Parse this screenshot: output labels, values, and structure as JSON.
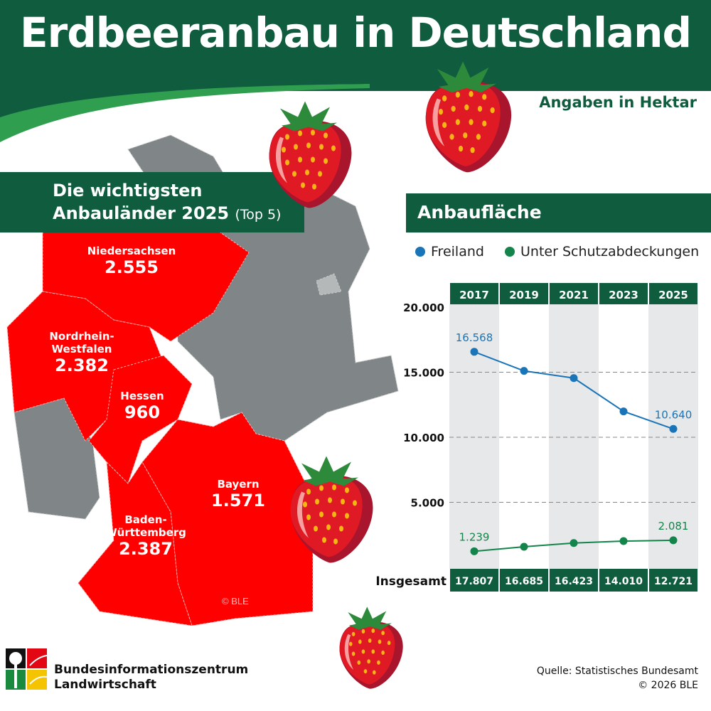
{
  "header": {
    "title": "Erdbeeranbau in Deutschland",
    "unit_note": "Angaben in Hektar"
  },
  "map": {
    "title_line1": "Die wichtigsten",
    "title_line2": "Anbauländer 2025",
    "title_suffix": "(Top 5)",
    "highlight_color": "#ff0000",
    "other_color": "#808587",
    "states": [
      {
        "name": "Niedersachsen",
        "value": "2.555"
      },
      {
        "name": "Nordrhein-\nWestfalen",
        "name_line1": "Nordrhein-",
        "name_line2": "Westfalen",
        "value": "2.382"
      },
      {
        "name": "Hessen",
        "value": "960"
      },
      {
        "name": "Bayern",
        "value": "1.571"
      },
      {
        "name": "Baden-Württemberg",
        "name_line1": "Baden-",
        "name_line2": "Württemberg",
        "value": "2.387"
      }
    ],
    "copyright": "© BLE"
  },
  "chart_data": {
    "type": "line",
    "title": "Anbaufläche",
    "categories": [
      "2017",
      "2019",
      "2021",
      "2023",
      "2025"
    ],
    "ylim": [
      0,
      20000
    ],
    "yticks": [
      5000,
      10000,
      15000,
      20000
    ],
    "ytick_labels": [
      "5.000",
      "10.000",
      "15.000",
      "20.000"
    ],
    "grid": "dashed horizontal",
    "legend_position": "top",
    "series": [
      {
        "name": "Freiland",
        "color": "#1a75b8",
        "values": [
          16568,
          15100,
          14550,
          11990,
          10640
        ],
        "labels": [
          "16.568",
          "",
          "",
          "",
          "10.640"
        ]
      },
      {
        "name": "Unter Schutzabdeckungen",
        "color": "#13854a",
        "values": [
          1239,
          1585,
          1873,
          2020,
          2081
        ],
        "labels": [
          "1.239",
          "",
          "",
          "",
          "2.081"
        ]
      }
    ],
    "total_label": "Insgesamt",
    "totals": [
      "17.807",
      "16.685",
      "16.423",
      "14.010",
      "12.721"
    ]
  },
  "footer": {
    "org_line1": "Bundesinformationszentrum",
    "org_line2": "Landwirtschaft",
    "source": "Quelle: Statistisches Bundesamt",
    "copyright": "© 2026 BLE"
  },
  "colors": {
    "brand_green": "#0f5c3f"
  }
}
